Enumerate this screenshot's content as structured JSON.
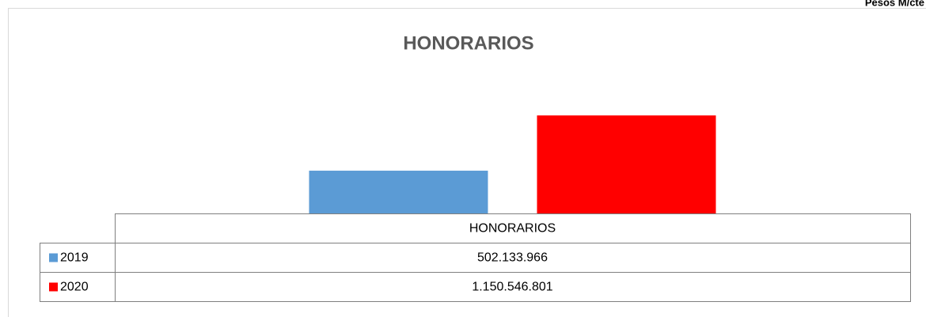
{
  "chart_data": {
    "type": "bar",
    "title": "HONORARIOS",
    "note": "Pesos M/cte",
    "categories": [
      "HONORARIOS"
    ],
    "series": [
      {
        "name": "2019",
        "color": "#5b9bd5",
        "values": [
          502133966
        ],
        "value_labels": [
          "502.133.966"
        ]
      },
      {
        "name": "2020",
        "color": "#ff0000",
        "values": [
          1150546801
        ],
        "value_labels": [
          "1.150.546.801"
        ]
      }
    ]
  }
}
